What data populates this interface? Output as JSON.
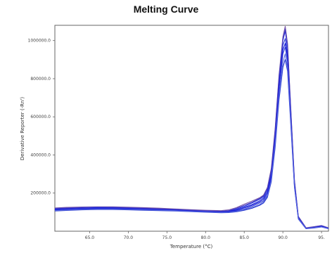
{
  "chart_data": {
    "type": "line",
    "title": "Melting Curve",
    "xlabel": "Temperature (°C)",
    "ylabel": "Derivative Reporter (-Rn')",
    "xlim": [
      60.5,
      95.9
    ],
    "ylim": [
      0,
      1080000
    ],
    "x_ticks": [
      65.0,
      70.0,
      75.0,
      80.0,
      85.0,
      90.0,
      95.0
    ],
    "x_tick_labels": [
      "65.0",
      "70.0",
      "75.0",
      "80.0",
      "85.0",
      "90.0",
      "95."
    ],
    "y_ticks": [
      200000,
      400000,
      600000,
      800000,
      1000000
    ],
    "y_tick_labels": [
      "200000.0",
      "400000.0",
      "600000.0",
      "800000.0",
      "1000000.0"
    ],
    "grid": false,
    "x": [
      60.5,
      62,
      64,
      66,
      68,
      70,
      72,
      74,
      76,
      78,
      80,
      82,
      83,
      84,
      85,
      86,
      87,
      87.5,
      88,
      88.5,
      89,
      89.5,
      90,
      90.3,
      90.6,
      91,
      91.5,
      92,
      93,
      94,
      95,
      95.9
    ],
    "series": [
      {
        "values": [
          115000,
          118000,
          120000,
          122000,
          121000,
          119000,
          117000,
          115000,
          112000,
          108000,
          105000,
          102000,
          104000,
          112000,
          125000,
          140000,
          160000,
          175000,
          210000,
          300000,
          500000,
          780000,
          975000,
          1010000,
          930000,
          620000,
          250000,
          70000,
          15000,
          20000,
          25000,
          15000
        ],
        "color": "#2f3ad8"
      },
      {
        "values": [
          118000,
          121000,
          124000,
          125000,
          124000,
          122000,
          120000,
          117000,
          113000,
          110000,
          106000,
          104000,
          106000,
          116000,
          130000,
          148000,
          168000,
          182000,
          220000,
          315000,
          520000,
          800000,
          1000000,
          1050000,
          960000,
          640000,
          260000,
          75000,
          17000,
          22000,
          28000,
          16000
        ],
        "color": "#1b2ae0"
      },
      {
        "values": [
          110000,
          113000,
          116000,
          118000,
          118000,
          116000,
          114000,
          112000,
          110000,
          106000,
          103000,
          100000,
          101000,
          106000,
          116000,
          130000,
          148000,
          160000,
          190000,
          280000,
          470000,
          740000,
          930000,
          965000,
          890000,
          600000,
          240000,
          68000,
          14000,
          18000,
          24000,
          14000
        ],
        "color": "#3b47d4"
      },
      {
        "values": [
          122000,
          125000,
          127000,
          128000,
          128000,
          126000,
          124000,
          121000,
          117000,
          113000,
          110000,
          108000,
          112000,
          124000,
          142000,
          158000,
          176000,
          190000,
          230000,
          330000,
          540000,
          820000,
          1020000,
          1075000,
          985000,
          660000,
          270000,
          78000,
          18000,
          24000,
          30000,
          18000
        ],
        "color": "#7a5aa8"
      },
      {
        "values": [
          106000,
          109000,
          112000,
          114000,
          114000,
          112000,
          110000,
          108000,
          106000,
          103000,
          100000,
          97000,
          98000,
          102000,
          110000,
          120000,
          136000,
          148000,
          178000,
          260000,
          440000,
          690000,
          860000,
          900000,
          840000,
          570000,
          230000,
          64000,
          13000,
          17000,
          22000,
          13000
        ],
        "color": "#2233cc"
      },
      {
        "values": [
          120000,
          122000,
          125000,
          127000,
          126000,
          124000,
          121000,
          118000,
          115000,
          111000,
          107000,
          105000,
          108000,
          120000,
          136000,
          152000,
          172000,
          186000,
          225000,
          320000,
          530000,
          810000,
          1008000,
          1060000,
          975000,
          650000,
          265000,
          76000,
          16000,
          23000,
          29000,
          17000
        ],
        "color": "#4a3fc0"
      },
      {
        "values": [
          113000,
          116000,
          118000,
          120000,
          120000,
          118000,
          116000,
          113000,
          111000,
          107000,
          104000,
          101000,
          103000,
          110000,
          122000,
          136000,
          154000,
          168000,
          200000,
          290000,
          485000,
          760000,
          950000,
          985000,
          910000,
          610000,
          245000,
          70000,
          15000,
          19000,
          26000,
          15000
        ],
        "color": "#1a1fd8"
      },
      {
        "values": [
          108000,
          111000,
          114000,
          116000,
          116000,
          114000,
          112000,
          110000,
          108000,
          104000,
          101000,
          98000,
          99000,
          104000,
          113000,
          124000,
          140000,
          154000,
          184000,
          268000,
          455000,
          710000,
          885000,
          930000,
          860000,
          585000,
          235000,
          66000,
          14000,
          18000,
          23000,
          14000
        ],
        "color": "#5566e0"
      }
    ]
  }
}
